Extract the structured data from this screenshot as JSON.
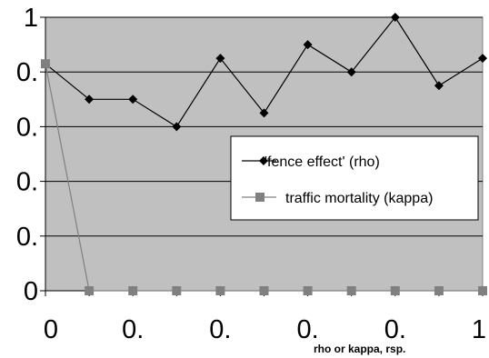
{
  "chart_data": {
    "type": "line",
    "title": "",
    "xlabel": "rho or kappa, rsp.",
    "ylabel": "",
    "x": [
      0,
      0.1,
      0.2,
      0.3,
      0.4,
      0.5,
      0.6,
      0.7,
      0.8,
      0.9,
      1.0
    ],
    "xlim": [
      0,
      1
    ],
    "ylim": [
      0,
      1
    ],
    "x_tick_labels": [
      "0",
      "0.",
      "0.",
      "0.",
      "0.",
      "1"
    ],
    "y_tick_labels": [
      "0",
      "0.",
      "0.",
      "0.",
      "0.",
      "1"
    ],
    "grid": "horizontal",
    "plot_background": "#c0c0c0",
    "legend_position": "right-middle",
    "series": [
      {
        "name": "'fence effect' (rho)",
        "marker": "diamond",
        "color": "#000000",
        "values": [
          0.83,
          0.7,
          0.7,
          0.6,
          0.85,
          0.65,
          0.9,
          0.8,
          1.0,
          0.75,
          0.85
        ]
      },
      {
        "name": "traffic mortality (kappa)",
        "marker": "square",
        "color": "#808080",
        "values": [
          0.83,
          0,
          0,
          0,
          0,
          0,
          0,
          0,
          0,
          0,
          0
        ]
      }
    ]
  }
}
